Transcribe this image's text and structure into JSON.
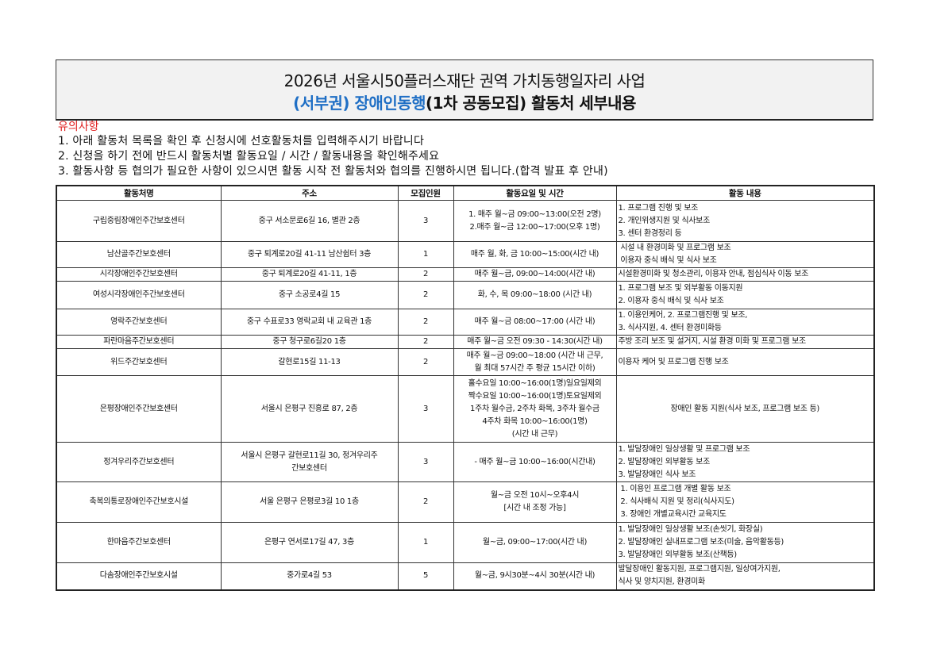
{
  "header": {
    "title_line1": "2026년 서울시50플러스재단 권역 가치동행일자리 사업",
    "title_line2_blue": "(서부권) 장애인동행",
    "title_line2_rest": "(1차 공동모집) 활동처 세부내용",
    "accent_color": "#1f6fc5"
  },
  "notes": {
    "title": "유의사항",
    "title_color": "#e02020",
    "items": [
      "1. 아래 활동처 목록을 확인 후 신청시에 선호활동처를 입력해주시기 바랍니다",
      "2. 신청을 하기 전에 반드시 활동처별 활동요일 / 시간 / 활동내용을 확인해주세요",
      "3. 활동사항 등 협의가 필요한 사항이 있으시면 활동 시작 전 활동처와 협의를 진행하시면 됩니다.(합격 발표 후 안내)"
    ]
  },
  "table": {
    "headers": [
      "활동처명",
      "주소",
      "모집인원",
      "활동요일 및 시간",
      "활동 내용"
    ],
    "rows": [
      {
        "name": "구립중림장애인주간보호센터",
        "address": [
          "중구 서소문로6길 16, 별관 2층"
        ],
        "count": "3",
        "schedule": [
          "1. 매주 월~금 09:00~13:00(오전 2명)",
          "2.매주 월~금 12:00~17:00(오후 1명)"
        ],
        "activity": [
          "1. 프로그램 진행 및 보조",
          "2. 개인위생지원 및 식사보조",
          "3. 센터 환경정리 등"
        ],
        "activity_align": "left"
      },
      {
        "name": "남산골주간보호센터",
        "address": [
          "중구 퇴계로20길 41-11 남산쉼터 3층"
        ],
        "count": "1",
        "schedule": [
          "매주 월, 화, 금 10:00~15:00(시간 내)"
        ],
        "activity": [
          " 시설 내 환경미화 및 프로그램 보조",
          " 이용자 중식 배식 및 식사 보조"
        ],
        "activity_align": "left"
      },
      {
        "name": "시각장애인주간보호센터",
        "address": [
          "중구 퇴계로20길 41-11, 1층"
        ],
        "count": "2",
        "schedule": [
          "매주 월~금, 09:00~14:00(시간 내)"
        ],
        "activity": [
          "시설환경미화 및 청소관리, 이용자 안내, 점심식사 이동 보조"
        ],
        "activity_align": "left"
      },
      {
        "name": "여성시각장애인주간보호센터",
        "address": [
          "중구 소공로4길 15"
        ],
        "count": "2",
        "schedule": [
          "화, 수, 목 09:00~18:00 (시간 내)"
        ],
        "activity": [
          "1. 프로그램 보조 및 외부활동 이동지원",
          "2. 이용자 중식 배식 및 식사 보조"
        ],
        "activity_align": "left"
      },
      {
        "name": "영락주간보호센터",
        "address": [
          "중구 수표로33 영락교회 내 교육관 1층"
        ],
        "count": "2",
        "schedule": [
          "매주 월~금 08:00~17:00 (시간 내)"
        ],
        "activity": [
          "1. 이용인케어, 2. 프로그램진행 및 보조,",
          "3. 식사지원, 4. 센터 환경미화등"
        ],
        "activity_align": "left"
      },
      {
        "name": "파란마음주간보호센터",
        "address": [
          "중구 청구로6길20 1층"
        ],
        "count": "2",
        "schedule": [
          "매주 월~금 오전 09:30 - 14:30(시간 내)"
        ],
        "activity": [
          "주방 조리 보조 및 설거지, 시설 환경 미화 및 프로그램 보조"
        ],
        "activity_align": "left"
      },
      {
        "name": "위드주간보호센터",
        "address": [
          "갈현로15길 11-13"
        ],
        "count": "2",
        "schedule": [
          "매주 월~금 09:00~18:00 (시간 내 근무,",
          "월 최대 57시간 주 평균 15시간 이하)"
        ],
        "activity": [
          "이용자 케어 및 프로그램 진행 보조"
        ],
        "activity_align": "left"
      },
      {
        "name": "은평장애인주간보호센터",
        "address": [
          "서울시 은평구 진흥로 87, 2층"
        ],
        "count": "3",
        "schedule": [
          "홀수요일 10:00~16:00(1명)일요일제외",
          "짝수요일 10:00~16:00(1명)토요일제외",
          "1주차 월수금, 2주차 화목, 3주차 월수금",
          "4주차 화목 10:00~16:00(1명)",
          "(시간 내 근무)"
        ],
        "activity": [
          "장애인 활동 지원(식사 보조, 프로그램 보조 등)"
        ],
        "activity_align": "center"
      },
      {
        "name": "정겨우리주간보호센터",
        "address": [
          "서울시 은평구 갈현로11길 30, 정겨우리주",
          "간보호센터"
        ],
        "count": "3",
        "schedule": [
          "- 매주 월~금 10:00~16:00(시간내)"
        ],
        "activity": [
          "1. 발달장애인 일상생활 및 프로그램 보조",
          "2. 발달장애인 외부활동 보조",
          "3. 발달장애인 식사 보조"
        ],
        "activity_align": "left"
      },
      {
        "name": "축복의통로장애인주간보호시설",
        "address": [
          "서울 은평구 은평로3길 10 1층"
        ],
        "count": "2",
        "schedule": [
          "월~금 오전 10시~오후4시",
          "[시간 내 조정 가능]"
        ],
        "activity": [
          " 1. 이용인 프로그램 개별 활동 보조",
          " 2. 식사배식 지원 및 정리(식사지도)",
          " 3. 장애인 개별교육시간 교육지도"
        ],
        "activity_align": "left"
      },
      {
        "name": "한마음주간보호센터",
        "address": [
          "은평구 연서로17길 47, 3층"
        ],
        "count": "1",
        "schedule": [
          "월~금, 09:00~17:00(시간 내)"
        ],
        "activity": [
          "1. 발달장애인 일상생활 보조(손씻기, 화장실)",
          "2. 발달장애인 실내프로그램 보조(미술, 음악활동등)",
          "3. 발달장애인 외부활동 보조(산책등)"
        ],
        "activity_align": "left"
      },
      {
        "name": "다솜장애인주간보호시설",
        "address": [
          "중가로4길 53"
        ],
        "count": "5",
        "schedule": [
          "월~금, 9시30분~4시 30분(시간 내)"
        ],
        "activity": [
          "발달장애인 활동지원, 프로그램지원, 일상여가지원,",
          "식사 및 양치지원, 환경미화"
        ],
        "activity_align": "left"
      }
    ]
  }
}
